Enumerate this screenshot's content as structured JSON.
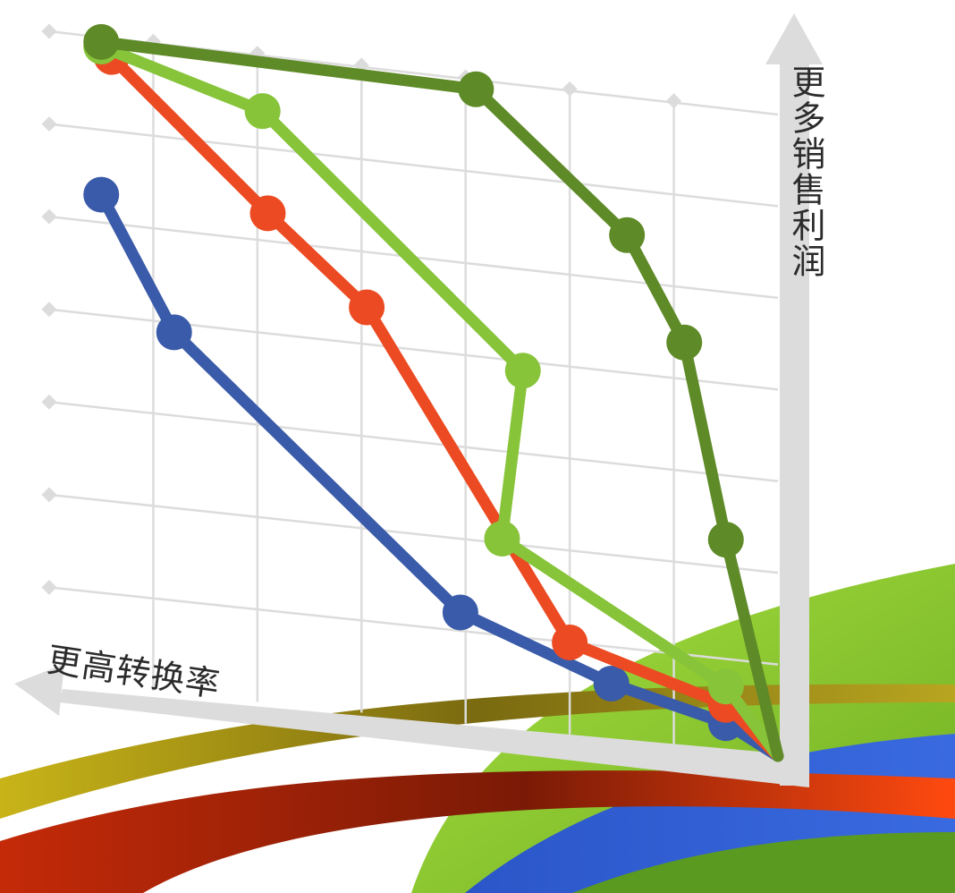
{
  "chart_data": {
    "type": "line",
    "xlabel": "更高转换率",
    "ylabel": "更多销售利润",
    "x_direction": "increasing-left",
    "grid": true,
    "legend": "none",
    "series": [
      {
        "color": "#3a5ba9",
        "points": [
          [
            0.5,
            0.3
          ],
          [
            1.6,
            0.6
          ],
          [
            3.05,
            1.2
          ],
          [
            5.8,
            3.9
          ],
          [
            6.5,
            5.3
          ]
        ]
      },
      {
        "color": "#ec4a22",
        "points": [
          [
            0.5,
            0.5
          ],
          [
            2.0,
            1.0
          ],
          [
            3.95,
            4.4
          ],
          [
            4.9,
            5.3
          ],
          [
            6.4,
            6.8
          ]
        ]
      },
      {
        "color": "#87c43a",
        "points": [
          [
            0.5,
            0.7
          ],
          [
            2.65,
            2.05
          ],
          [
            2.45,
            3.9
          ],
          [
            4.95,
            6.4
          ],
          [
            6.5,
            6.9
          ]
        ]
      },
      {
        "color": "#5e8a27",
        "points": [
          [
            0.5,
            2.3
          ],
          [
            0.9,
            4.4
          ],
          [
            1.45,
            5.5
          ],
          [
            2.9,
            6.9
          ],
          [
            6.5,
            6.95
          ]
        ]
      }
    ]
  }
}
